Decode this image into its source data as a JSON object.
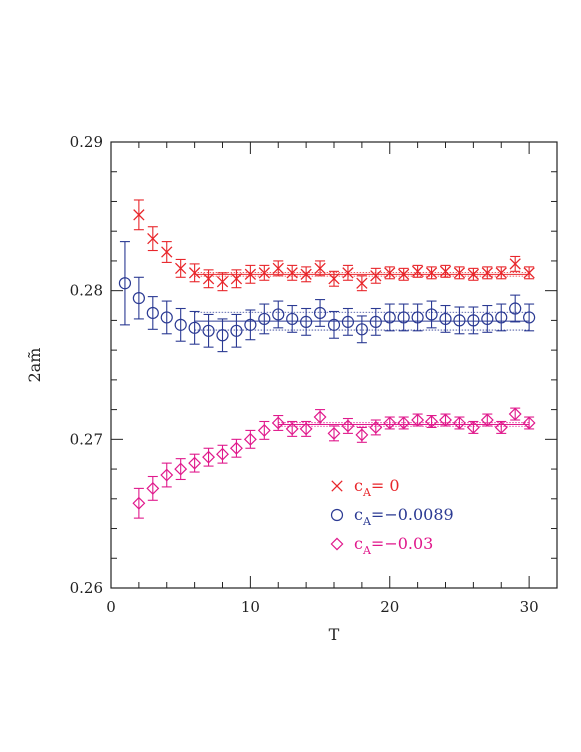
{
  "chart_data": {
    "type": "scatter",
    "xlabel": "T",
    "ylabel": "2am̃",
    "xlim": [
      0,
      32
    ],
    "ylim": [
      0.26,
      0.29
    ],
    "x_ticks": [
      0,
      10,
      20,
      30
    ],
    "x_tick_labels": [
      "0",
      "10",
      "20",
      "30"
    ],
    "y_ticks": [
      0.26,
      0.27,
      0.28,
      0.29
    ],
    "y_tick_labels": [
      "0.26",
      "0.27",
      "0.28",
      "0.29"
    ],
    "grid": false,
    "legend_position": "lower-right",
    "series": [
      {
        "name": "c_A= 0",
        "legend_main": "c",
        "legend_sub": "A",
        "legend_rest": "=  0",
        "color": "#e8262b",
        "marker": "cross",
        "x": [
          2,
          3,
          4,
          5,
          6,
          7,
          8,
          9,
          10,
          11,
          12,
          13,
          14,
          15,
          16,
          17,
          18,
          19,
          20,
          21,
          22,
          23,
          24,
          25,
          26,
          27,
          28,
          29,
          30
        ],
        "y": [
          0.2851,
          0.2835,
          0.2826,
          0.2815,
          0.2812,
          0.2808,
          0.2806,
          0.2808,
          0.2811,
          0.2812,
          0.2815,
          0.2812,
          0.2811,
          0.2815,
          0.2808,
          0.2812,
          0.2805,
          0.281,
          0.2812,
          0.2811,
          0.2813,
          0.2812,
          0.2813,
          0.2812,
          0.2811,
          0.2812,
          0.2812,
          0.2818,
          0.2812
        ],
        "err": [
          0.001,
          0.0008,
          0.0007,
          0.0006,
          0.0006,
          0.0006,
          0.0006,
          0.0006,
          0.0006,
          0.0005,
          0.0005,
          0.0005,
          0.0005,
          0.0005,
          0.0005,
          0.0005,
          0.0005,
          0.0005,
          0.0004,
          0.0004,
          0.0004,
          0.0004,
          0.0004,
          0.0004,
          0.0004,
          0.0004,
          0.0004,
          0.0005,
          0.0004
        ],
        "fit": {
          "x1": 6,
          "x2": 30,
          "y": 0.2811,
          "band": 0.00012
        }
      },
      {
        "name": "c_A=−0.0089",
        "legend_main": "c",
        "legend_sub": "A",
        "legend_rest": "=−0.0089",
        "color": "#2b3a93",
        "marker": "circle",
        "x": [
          1,
          2,
          3,
          4,
          5,
          6,
          7,
          8,
          9,
          10,
          11,
          12,
          13,
          14,
          15,
          16,
          17,
          18,
          19,
          20,
          21,
          22,
          23,
          24,
          25,
          26,
          27,
          28,
          29,
          30
        ],
        "y": [
          0.2805,
          0.2795,
          0.2785,
          0.2782,
          0.2777,
          0.2775,
          0.2773,
          0.277,
          0.2773,
          0.2777,
          0.2781,
          0.2784,
          0.2781,
          0.2779,
          0.2785,
          0.2777,
          0.2779,
          0.2774,
          0.2779,
          0.2782,
          0.2782,
          0.2782,
          0.2784,
          0.2781,
          0.278,
          0.278,
          0.2781,
          0.2782,
          0.2788,
          0.2782
        ],
        "err": [
          0.0028,
          0.0014,
          0.0011,
          0.0011,
          0.0011,
          0.0011,
          0.0011,
          0.0011,
          0.0011,
          0.001,
          0.001,
          0.0009,
          0.0009,
          0.0009,
          0.0009,
          0.0009,
          0.0009,
          0.0009,
          0.0009,
          0.0009,
          0.0009,
          0.0009,
          0.0009,
          0.0009,
          0.0009,
          0.0009,
          0.0009,
          0.0009,
          0.0009,
          0.0009
        ],
        "fit": {
          "x1": 6,
          "x2": 30,
          "y": 0.27795,
          "band": 0.0006
        }
      },
      {
        "name": "c_A=−0.03",
        "legend_main": "c",
        "legend_sub": "A",
        "legend_rest": "=−0.03",
        "color": "#e0198c",
        "marker": "diamond",
        "x": [
          2,
          3,
          4,
          5,
          6,
          7,
          8,
          9,
          10,
          11,
          12,
          13,
          14,
          15,
          16,
          17,
          18,
          19,
          20,
          21,
          22,
          23,
          24,
          25,
          26,
          27,
          28,
          29,
          30
        ],
        "y": [
          0.2657,
          0.2667,
          0.2676,
          0.268,
          0.2684,
          0.2688,
          0.269,
          0.2694,
          0.27,
          0.2706,
          0.2711,
          0.2707,
          0.2707,
          0.2715,
          0.2704,
          0.2709,
          0.2703,
          0.2708,
          0.2711,
          0.2711,
          0.2713,
          0.2712,
          0.2713,
          0.2711,
          0.2708,
          0.2713,
          0.2708,
          0.2717,
          0.2711
        ],
        "err": [
          0.001,
          0.0008,
          0.0008,
          0.0007,
          0.0006,
          0.0006,
          0.0006,
          0.0006,
          0.0006,
          0.0006,
          0.0005,
          0.0005,
          0.0005,
          0.0005,
          0.0005,
          0.0005,
          0.0005,
          0.0005,
          0.0004,
          0.0004,
          0.0004,
          0.0004,
          0.0004,
          0.0004,
          0.0004,
          0.0004,
          0.0004,
          0.0004,
          0.0004
        ],
        "fit": {
          "x1": 12,
          "x2": 30,
          "y": 0.271,
          "band": 0.00012
        }
      }
    ]
  }
}
